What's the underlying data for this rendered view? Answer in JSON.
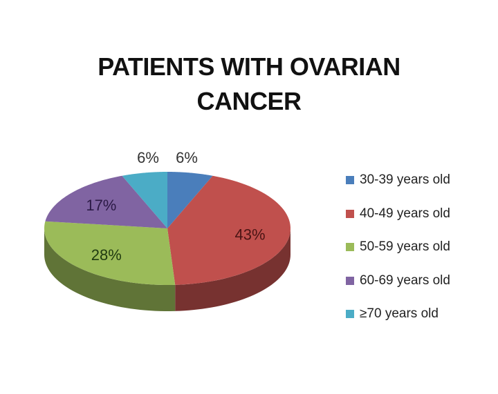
{
  "chart_data": {
    "type": "pie",
    "title_line1": "PATIENTS WITH OVARIAN",
    "title_line2": "CANCER",
    "categories": [
      "30-39 years old",
      "40-49 years old",
      "50-59 years old",
      "60-69 years old",
      "≥70  years old"
    ],
    "values": [
      6,
      43,
      28,
      17,
      6
    ],
    "labels": [
      "6%",
      "43%",
      "28%",
      "17%",
      "6%"
    ],
    "colors": [
      "#4a7ebb",
      "#c0504d",
      "#9bbb59",
      "#8064a2",
      "#4bacc6"
    ],
    "label_colors": [
      "#333333",
      "#4a1414",
      "#1f3a10",
      "#2b1a45",
      "#333333"
    ],
    "legend_position": "right",
    "style": "3d"
  }
}
